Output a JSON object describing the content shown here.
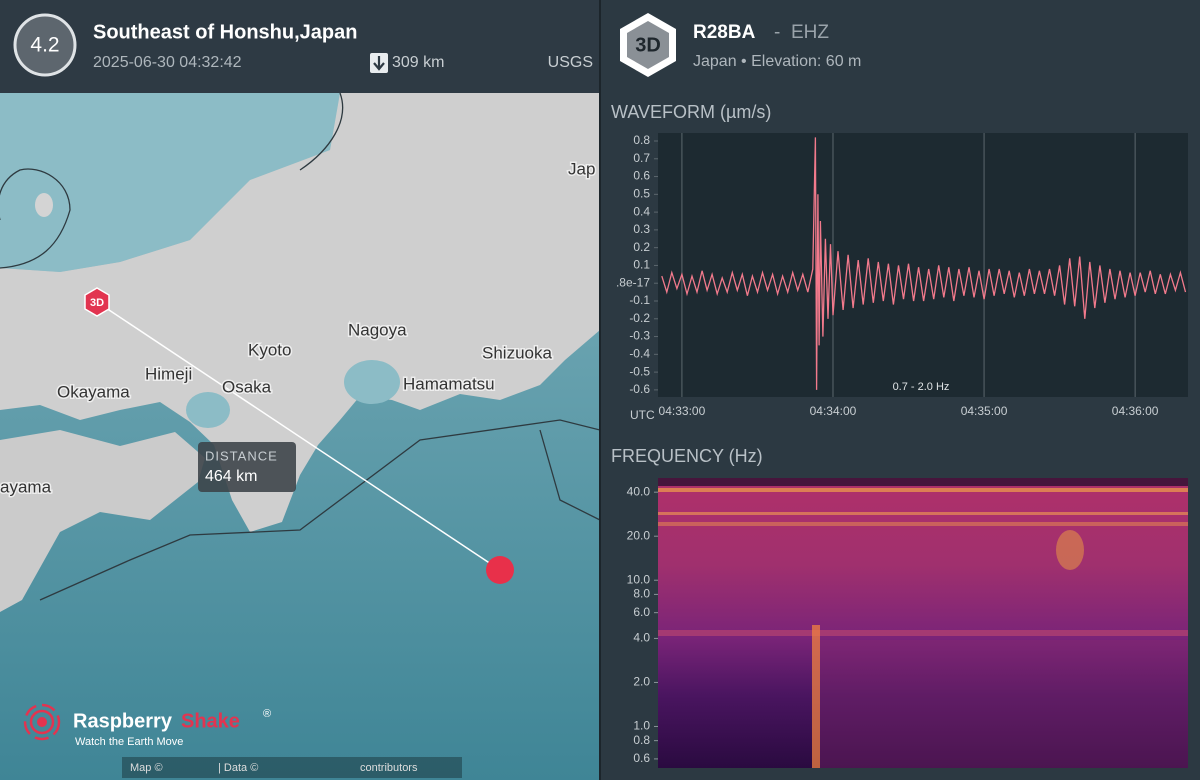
{
  "event": {
    "magnitude": "4.2",
    "title": "Southeast of Honshu,Japan",
    "time": "2025-06-30 04:32:42",
    "depth": "309 km",
    "source": "USGS"
  },
  "map": {
    "labels": [
      "Kyoto",
      "Nagoya",
      "Shizuoka",
      "Okayama",
      "Himeji",
      "Osaka",
      "Hamamatsu",
      "ayama",
      "Jap"
    ],
    "distance_label": "DISTANCE",
    "distance": "464 km",
    "station_marker": "3D",
    "attribution": [
      "Map ©",
      "| Data ©",
      "contributors"
    ]
  },
  "logo": {
    "name_1": "Raspberry",
    "name_2": "Shake",
    "mark": "®",
    "tagline": "Watch the Earth Move"
  },
  "station": {
    "badge": "3D",
    "code": "R28BA",
    "separator": "-",
    "channel": "EHZ",
    "location": "Japan • Elevation: 60 m"
  },
  "chart_data": [
    {
      "type": "line",
      "title": "WAVEFORM (µm/s)",
      "x_label": "UTC",
      "annotation": "0.7 - 2.0 Hz",
      "color": "#f27a8c",
      "grid": "x",
      "x": [
        -8,
        -6,
        -4,
        -2,
        0,
        2,
        4,
        6,
        8,
        10,
        12,
        14,
        16,
        18,
        20,
        22,
        24,
        26,
        28,
        30,
        32,
        34,
        36,
        38,
        40,
        42,
        44,
        46,
        48,
        50,
        52,
        53,
        53.5,
        54,
        54.5,
        55,
        56,
        57,
        58,
        59,
        60,
        62,
        64,
        66,
        68,
        70,
        72,
        74,
        76,
        78,
        80,
        82,
        84,
        86,
        88,
        90,
        92,
        94,
        96,
        98,
        100,
        102,
        104,
        106,
        108,
        110,
        112,
        114,
        116,
        118,
        120,
        122,
        124,
        126,
        128,
        130,
        132,
        134,
        136,
        138,
        140,
        142,
        144,
        146,
        148,
        150,
        152,
        154,
        156,
        158,
        160,
        162,
        164,
        166,
        168,
        170,
        172,
        174,
        176,
        178,
        180,
        182,
        184,
        186,
        188,
        190,
        192,
        194,
        196,
        198,
        200
      ],
      "values": [
        0.04,
        -0.05,
        0.06,
        -0.03,
        0.05,
        -0.06,
        0.04,
        -0.05,
        0.07,
        -0.04,
        0.05,
        -0.06,
        0.03,
        -0.05,
        0.06,
        -0.04,
        0.05,
        -0.07,
        0.04,
        -0.05,
        0.06,
        -0.04,
        0.05,
        -0.06,
        0.04,
        -0.05,
        0.06,
        -0.04,
        0.05,
        -0.05,
        0.08,
        0.82,
        -0.6,
        0.5,
        -0.35,
        0.35,
        -0.3,
        0.25,
        -0.2,
        0.22,
        -0.18,
        0.18,
        -0.15,
        0.16,
        -0.14,
        0.13,
        -0.12,
        0.14,
        -0.11,
        0.12,
        -0.1,
        0.11,
        -0.12,
        0.1,
        -0.09,
        0.11,
        -0.1,
        0.09,
        -0.1,
        0.08,
        -0.09,
        0.1,
        -0.08,
        0.09,
        -0.1,
        0.08,
        -0.07,
        0.09,
        -0.08,
        0.07,
        -0.09,
        0.08,
        -0.07,
        0.08,
        -0.06,
        0.07,
        -0.08,
        0.06,
        -0.07,
        0.08,
        -0.06,
        0.07,
        -0.06,
        0.08,
        -0.07,
        0.1,
        -0.12,
        0.14,
        -0.13,
        0.15,
        -0.2,
        0.12,
        -0.14,
        0.1,
        -0.11,
        0.08,
        -0.09,
        0.07,
        -0.08,
        0.06,
        -0.07,
        0.06,
        -0.05,
        0.07,
        -0.06,
        0.05,
        -0.06,
        0.05,
        -0.04,
        0.06,
        -0.05
      ],
      "xlim": [
        -9.5,
        201
      ],
      "xticks": [
        {
          "value": 0,
          "label": "04:33:00"
        },
        {
          "value": 60,
          "label": "04:34:00"
        },
        {
          "value": 120,
          "label": "04:35:00"
        },
        {
          "value": 180,
          "label": "04:36:00"
        }
      ],
      "ylim": [
        -0.64,
        0.845
      ],
      "yticks": [
        0.8,
        0.7,
        0.6,
        0.5,
        0.4,
        0.3,
        0.2,
        0.1,
        {
          "value": 0,
          "label": ".8e-17"
        },
        -0.1,
        -0.2,
        -0.3,
        -0.4,
        -0.5,
        -0.6
      ]
    },
    {
      "type": "heatmap",
      "title": "FREQUENCY (Hz)",
      "log_y": true,
      "ylim": [
        0.52,
        50
      ],
      "yticks": [
        {
          "value": 40,
          "label": "40.0"
        },
        {
          "value": 20,
          "label": "20.0"
        },
        {
          "value": 10,
          "label": "10.0"
        },
        {
          "value": 8,
          "label": "8.0"
        },
        {
          "value": 6,
          "label": "6.0"
        },
        {
          "value": 4,
          "label": "4.0"
        },
        {
          "value": 2,
          "label": "2.0"
        },
        {
          "value": 1,
          "label": "1.0"
        },
        {
          "value": 0.8,
          "label": "0.8"
        },
        {
          "value": 0.6,
          "label": "0.6"
        }
      ]
    }
  ]
}
